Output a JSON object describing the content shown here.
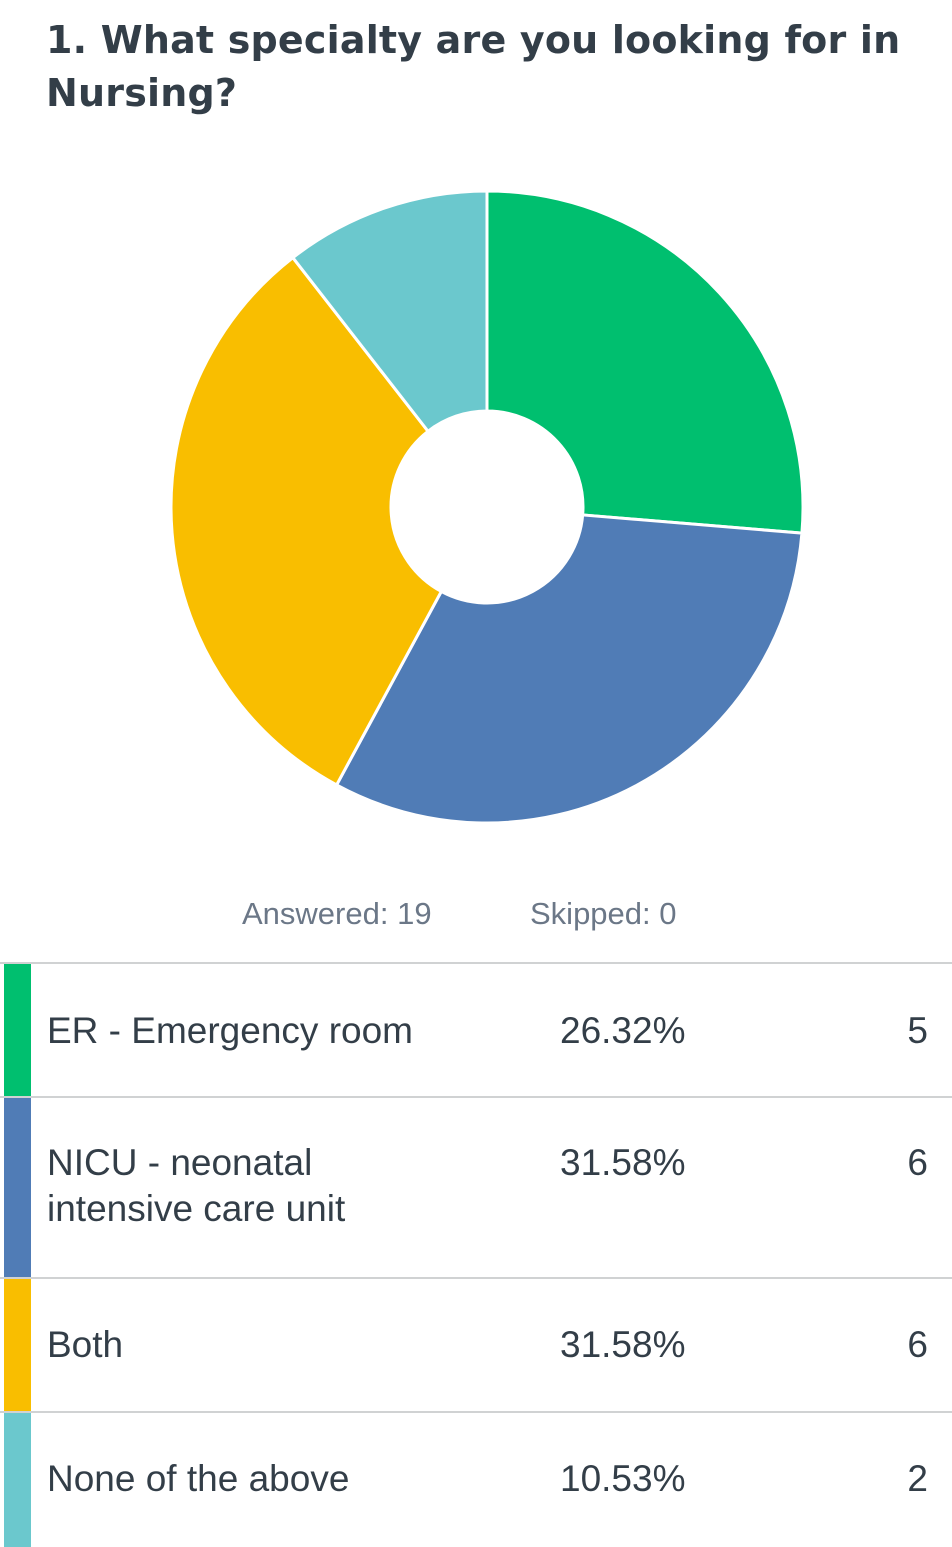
{
  "question": {
    "title": "1. What specialty are you looking for in Nursing?"
  },
  "stats": {
    "answered": "Answered: 19",
    "skipped": "Skipped: 0"
  },
  "colors": {
    "text": "#333e48",
    "muted": "#6b7787",
    "divider": "#d0d2d3",
    "er": "#00bf6f",
    "nicu": "#507cb6",
    "both": "#f9be00",
    "none": "#6bc8cd"
  },
  "chart_data": {
    "type": "pie",
    "title": "1. What specialty are you looking for in Nursing?",
    "donut": true,
    "categories": [
      "ER - Emergency room",
      "NICU - neonatal intensive care unit",
      "Both",
      "None of the above"
    ],
    "values": [
      26.32,
      31.58,
      31.58,
      10.53
    ],
    "counts": [
      5,
      6,
      6,
      2
    ],
    "colors": [
      "#00bf6f",
      "#507cb6",
      "#f9be00",
      "#6bc8cd"
    ]
  },
  "table": {
    "rows": [
      {
        "choice": "ER - Emergency room",
        "percent": "26.32%",
        "count": "5"
      },
      {
        "choice": "NICU - neonatal intensive care unit",
        "percent": "31.58%",
        "count": "6"
      },
      {
        "choice": "Both",
        "percent": "31.58%",
        "count": "6"
      },
      {
        "choice": "None of the above",
        "percent": "10.53%",
        "count": "2"
      }
    ]
  }
}
